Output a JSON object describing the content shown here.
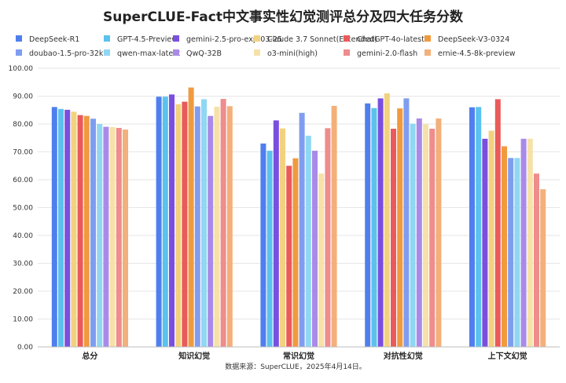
{
  "chart_data": {
    "type": "bar",
    "title": "SuperCLUE-Fact中文事实性幻觉测评总分及四大任务分数",
    "source": "数据来源：SuperCLUE，2025年4月14日。",
    "categories": [
      "总分",
      "知识幻觉",
      "常识幻觉",
      "对抗性幻觉",
      "上下文幻觉"
    ],
    "ylim": [
      0,
      100
    ],
    "yticks": [
      "0.00",
      "10.00",
      "20.00",
      "30.00",
      "40.00",
      "50.00",
      "60.00",
      "70.00",
      "80.00",
      "90.00",
      "100.00"
    ],
    "grid": true,
    "legend_position": "top",
    "series": [
      {
        "name": "DeepSeek-R1",
        "color": "#4f7fee",
        "values": [
          86.1,
          89.8,
          73.0,
          87.4,
          86.0
        ]
      },
      {
        "name": "GPT-4.5-Preview",
        "color": "#5bc2ee",
        "values": [
          85.4,
          89.8,
          70.4,
          85.7,
          86.1
        ]
      },
      {
        "name": "gemini-2.5-pro-exp-03-25",
        "color": "#7a4fe0",
        "values": [
          85.1,
          90.6,
          81.3,
          89.2,
          74.7
        ]
      },
      {
        "name": "Claude 3.7 Sonnet(Extended)",
        "color": "#f2d27e",
        "values": [
          84.4,
          87.1,
          78.4,
          91.0,
          77.6
        ]
      },
      {
        "name": "ChatGPT-4o-latest",
        "color": "#ea5a5a",
        "values": [
          83.2,
          88.0,
          65.0,
          78.3,
          88.9
        ]
      },
      {
        "name": "DeepSeek-V3-0324",
        "color": "#f09a3e",
        "values": [
          82.9,
          93.1,
          67.7,
          85.6,
          72.0
        ]
      },
      {
        "name": "doubao-1.5-pro-32k",
        "color": "#7f9df0",
        "values": [
          81.9,
          86.3,
          84.0,
          89.2,
          67.8
        ]
      },
      {
        "name": "qwen-max-latest",
        "color": "#8fd7f2",
        "values": [
          80.0,
          88.9,
          75.8,
          80.1,
          67.8
        ]
      },
      {
        "name": "QwQ-32B",
        "color": "#a98ae8",
        "values": [
          79.0,
          82.9,
          70.4,
          82.0,
          74.7
        ]
      },
      {
        "name": "o3-mini(high)",
        "color": "#f6e1a8",
        "values": [
          78.9,
          86.2,
          62.2,
          79.9,
          74.7
        ]
      },
      {
        "name": "gemini-2.0-flash",
        "color": "#ef8c8c",
        "values": [
          78.6,
          89.0,
          78.5,
          78.3,
          62.2
        ]
      },
      {
        "name": "ernie-4.5-8k-preview",
        "color": "#f3b07a",
        "values": [
          78.0,
          86.4,
          86.5,
          82.0,
          56.6
        ]
      }
    ]
  }
}
